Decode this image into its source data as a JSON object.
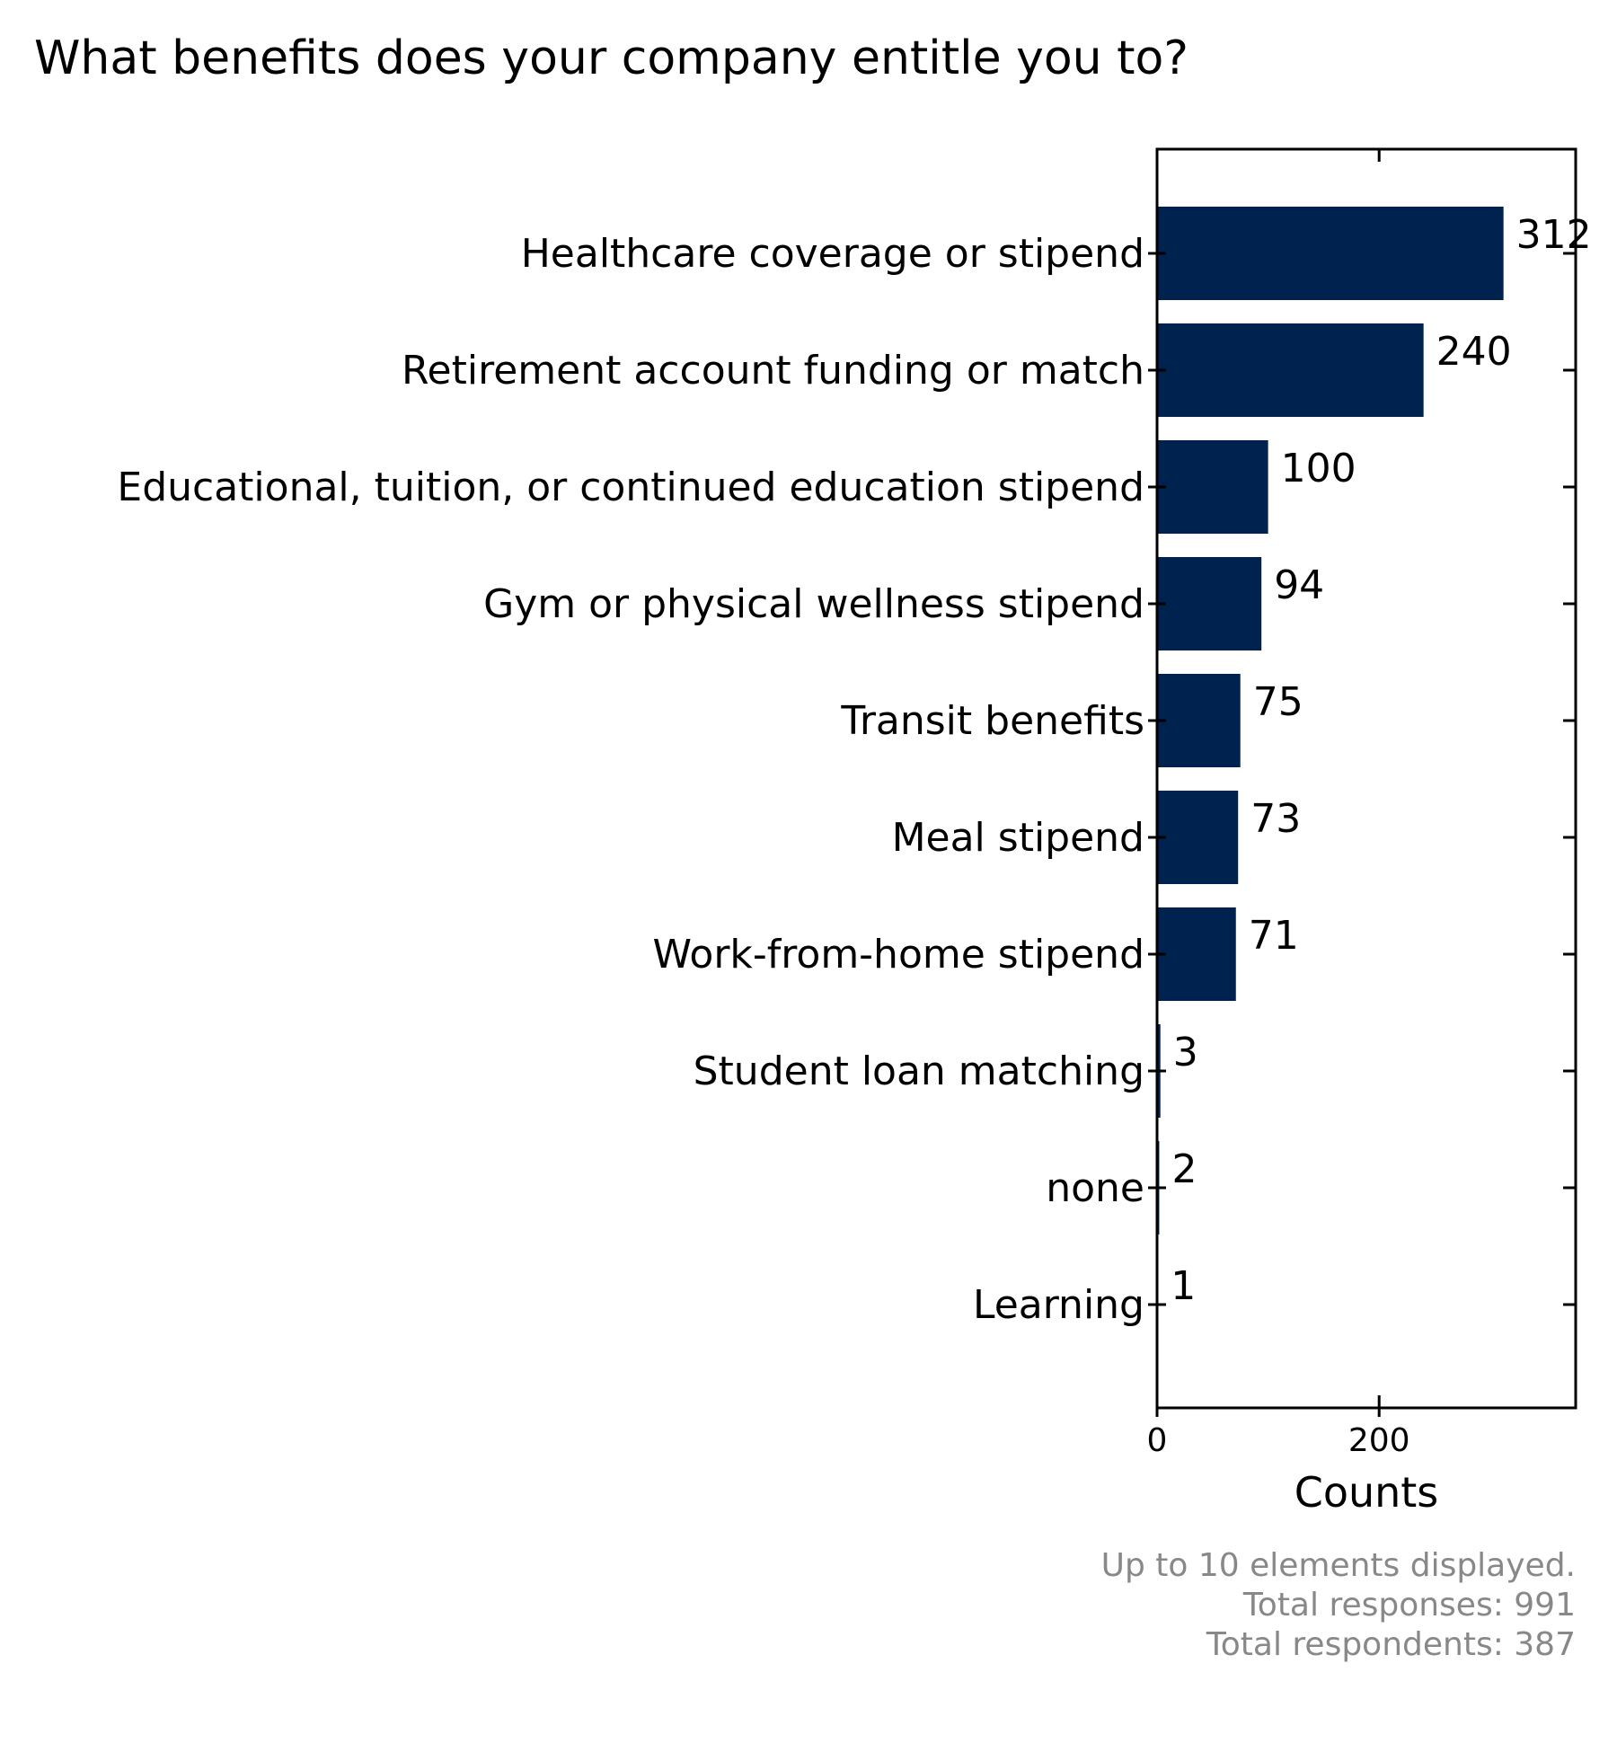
{
  "chart_data": {
    "type": "bar",
    "orientation": "horizontal",
    "title": "What benefits does your company entitle you to?",
    "xlabel": "Counts",
    "ylabel": "",
    "categories": [
      "Healthcare coverage or stipend",
      "Retirement account funding or match",
      "Educational, tuition, or continued education stipend",
      "Gym or physical wellness stipend",
      "Transit benefits",
      "Meal stipend",
      "Work-from-home stipend",
      "Student loan matching",
      "none",
      "Learning"
    ],
    "values": [
      312,
      240,
      100,
      94,
      75,
      73,
      71,
      3,
      2,
      1
    ],
    "xlim": [
      0,
      377
    ],
    "xticks": [
      0,
      200
    ],
    "grid": false,
    "legend": "none",
    "bar_color": "#00224e",
    "footnotes": [
      "Up to 10 elements displayed.",
      "Total responses: 991",
      "Total respondents: 387"
    ],
    "footnote_color": "#888888"
  }
}
